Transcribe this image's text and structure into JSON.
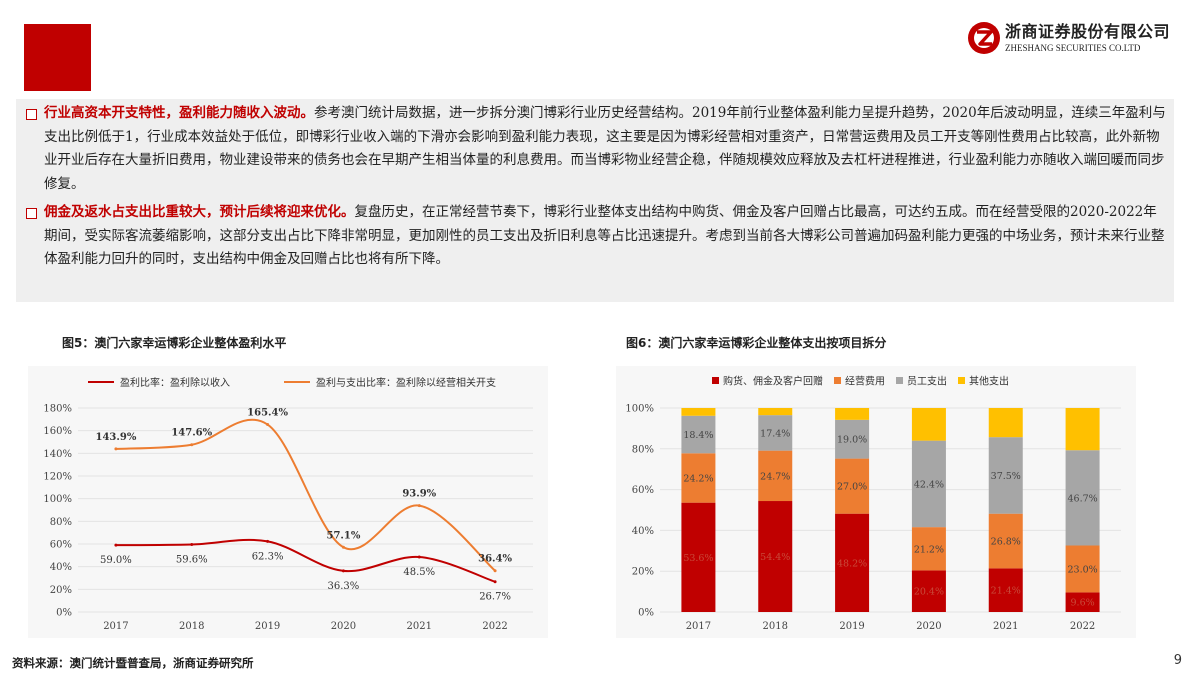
{
  "brand": {
    "cn": "浙商证券股份有限公司",
    "en": "ZHESHANG SECURITIES CO.LTD",
    "accent": "#c00000"
  },
  "paragraphs": [
    {
      "lead": "行业高资本开支特性，盈利能力随收入波动。",
      "body": "参考澳门统计局数据，进一步拆分澳门博彩行业历史经营结构。2019年前行业整体盈利能力呈提升趋势，2020年后波动明显，连续三年盈利与支出比例低于1，行业成本效益处于低位，即博彩行业收入端的下滑亦会影响到盈利能力表现，这主要是因为博彩经营相对重资产，日常营运费用及员工开支等刚性费用占比较高，此外新物业开业后存在大量折旧费用，物业建设带来的债务也会在早期产生相当体量的利息费用。而当博彩物业经营企稳，伴随规模效应释放及去杠杆进程推进，行业盈利能力亦随收入端回暖而同步修复。"
    },
    {
      "lead": "佣金及返水占支出比重较大，预计后续将迎来优化。",
      "body": "复盘历史，在正常经营节奏下，博彩行业整体支出结构中购货、佣金及客户回赠占比最高，可达约五成。而在经营受限的2020-2022年期间，受实际客流萎缩影响，这部分支出占比下降非常明显，更加刚性的员工支出及折旧利息等占比迅速提升。考虑到当前各大博彩公司普遍加码盈利能力更强的中场业务，预计未来行业整体盈利能力回升的同时，支出结构中佣金及回赠占比也将有所下降。"
    }
  ],
  "figures": {
    "fig5_title": "图5：澳门六家幸运博彩企业整体盈利水平",
    "fig6_title": "图6：澳门六家幸运博彩企业整体支出按项目拆分"
  },
  "chart_data": [
    {
      "type": "line",
      "x": [
        "2017",
        "2018",
        "2019",
        "2020",
        "2021",
        "2022"
      ],
      "ylim": [
        0,
        180
      ],
      "yticks": [
        "0%",
        "20%",
        "40%",
        "60%",
        "80%",
        "100%",
        "120%",
        "140%",
        "160%",
        "180%"
      ],
      "legend_position": "top",
      "series": [
        {
          "name": "盈利比率：盈利除以收入",
          "color": "#c00000",
          "values": [
            59.0,
            59.6,
            62.3,
            36.3,
            48.5,
            26.7
          ],
          "labels": [
            "59.0%",
            "59.6%",
            "62.3%",
            "36.3%",
            "48.5%",
            "26.7%"
          ]
        },
        {
          "name": "盈利与支出比率：盈利除以经营相关开支",
          "color": "#ed7d31",
          "values": [
            143.9,
            147.6,
            165.4,
            57.1,
            93.9,
            36.4
          ],
          "labels": [
            "143.9%",
            "147.6%",
            "165.4%",
            "57.1%",
            "93.9%",
            "36.4%"
          ]
        }
      ]
    },
    {
      "type": "bar",
      "stacked": true,
      "categories": [
        "2017",
        "2018",
        "2019",
        "2020",
        "2021",
        "2022"
      ],
      "ylim": [
        0,
        100
      ],
      "yticks": [
        "0%",
        "20%",
        "40%",
        "60%",
        "80%",
        "100%"
      ],
      "legend_position": "top",
      "series": [
        {
          "name": "购货、佣金及客户回赠",
          "color": "#c00000",
          "values": [
            53.6,
            54.4,
            48.2,
            20.4,
            21.4,
            9.6
          ],
          "labels": [
            "53.6%",
            "54.4%",
            "48.2%",
            "20.4%",
            "21.4%",
            "9.6%"
          ]
        },
        {
          "name": "经营费用",
          "color": "#ed7d31",
          "values": [
            24.2,
            24.7,
            27.0,
            21.2,
            26.8,
            23.0
          ],
          "labels": [
            "24.2%",
            "24.7%",
            "27.0%",
            "21.2%",
            "26.8%",
            "23.0%"
          ]
        },
        {
          "name": "员工支出",
          "color": "#a6a6a6",
          "values": [
            18.4,
            17.4,
            19.0,
            42.4,
            37.5,
            46.7
          ],
          "labels": [
            "18.4%",
            "17.4%",
            "19.0%",
            "42.4%",
            "37.5%",
            "46.7%"
          ]
        },
        {
          "name": "其他支出",
          "color": "#ffc000",
          "values": [
            3.8,
            3.5,
            5.8,
            16.0,
            14.3,
            20.7
          ],
          "labels": [
            "",
            "",
            "",
            "",
            "",
            ""
          ]
        }
      ]
    }
  ],
  "footer": {
    "source": "资料来源：澳门统计暨普查局，浙商证券研究所",
    "page": "9"
  }
}
